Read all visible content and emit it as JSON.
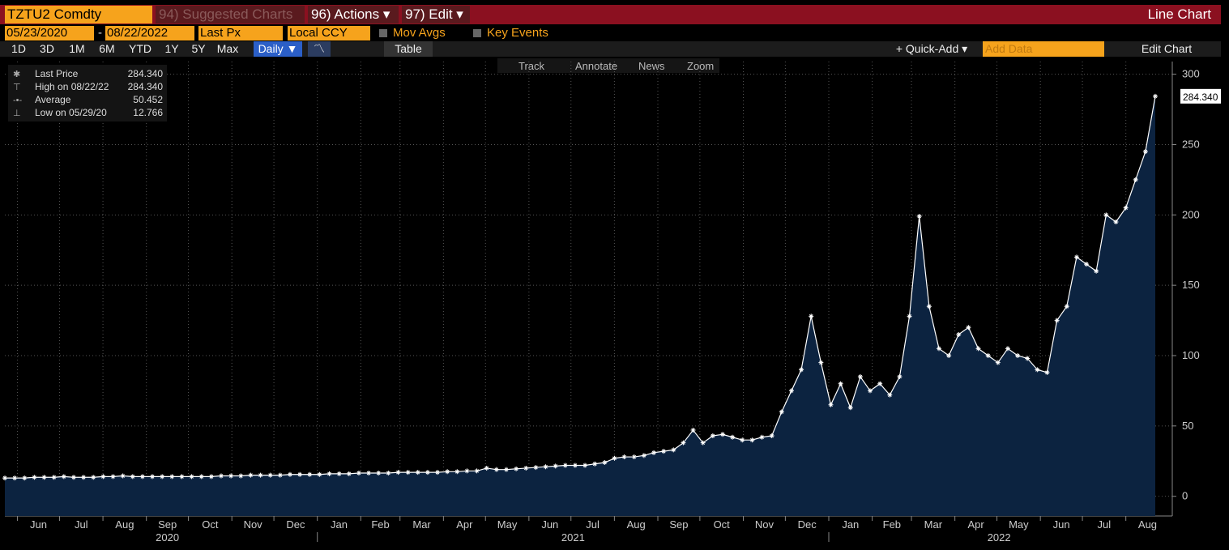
{
  "header": {
    "ticker": "TZTU2 Comdty",
    "suggested": "94) Suggested Charts",
    "actions": "96) Actions ▾",
    "edit": "97) Edit ▾",
    "chart_type": "Line Chart"
  },
  "controls": {
    "start": "05/23/2020",
    "dash": "-",
    "end": "08/22/2022",
    "field": "Last Px",
    "currency": "Local CCY",
    "mov_avgs": "Mov Avgs",
    "key_events": "Key Events"
  },
  "toolbar": {
    "periods": [
      "1D",
      "3D",
      "1M",
      "6M",
      "YTD",
      "1Y",
      "5Y",
      "Max"
    ],
    "frequency": "Daily ▼",
    "table": "Table",
    "quick_add": "+ Quick-Add ▾",
    "add_data": "Add Data",
    "edit_chart": "Edit Chart"
  },
  "chart_tools": [
    "Track",
    "Annotate",
    "News",
    "Zoom"
  ],
  "legend": {
    "rows": [
      [
        "Last Price",
        "284.340"
      ],
      [
        "High on 08/22/22",
        "284.340"
      ],
      [
        "Average",
        "50.452"
      ],
      [
        "Low on 05/29/20",
        "12.766"
      ]
    ]
  },
  "chart_data": {
    "type": "line",
    "last_label": "284.340",
    "color": "#ffffff",
    "fill": "#0c2340",
    "ylim": [
      -14,
      309
    ],
    "yticks": [
      0,
      50,
      100,
      150,
      200,
      250,
      300
    ],
    "grid": true,
    "months": [
      "Jun",
      "Jul",
      "Aug",
      "Sep",
      "Oct",
      "Nov",
      "Dec",
      "Jan",
      "Feb",
      "Mar",
      "Apr",
      "May",
      "Jun",
      "Jul",
      "Aug",
      "Sep",
      "Oct",
      "Nov",
      "Dec",
      "Jan",
      "Feb",
      "Mar",
      "Apr",
      "May",
      "Jun",
      "Jul",
      "Aug"
    ],
    "years": [
      "2020",
      "2021",
      "2022"
    ],
    "values": [
      13,
      13,
      13,
      13.5,
      13.5,
      13.5,
      14,
      13.5,
      13.5,
      13.5,
      14,
      14,
      14.5,
      14,
      14,
      14,
      14,
      14,
      14,
      14,
      14,
      14,
      14.5,
      14.5,
      14.5,
      15,
      15,
      15,
      15,
      15.5,
      15.5,
      15.5,
      15.5,
      16,
      16,
      16,
      16.5,
      16.5,
      16.5,
      16.5,
      17,
      17,
      17,
      17,
      17,
      17.5,
      17.5,
      18,
      18,
      20,
      19,
      19,
      19.5,
      20,
      20.5,
      21,
      21.5,
      22,
      22,
      22,
      23,
      24,
      27,
      28,
      28,
      29,
      31,
      32,
      33,
      38,
      47,
      38,
      43,
      44,
      42,
      40,
      40,
      42,
      43,
      60,
      75,
      90,
      128,
      95,
      65,
      80,
      63,
      85,
      75,
      80,
      72,
      85,
      128,
      199,
      135,
      105,
      100,
      115,
      120,
      105,
      100,
      95,
      105,
      100,
      98,
      90,
      88,
      125,
      135,
      170,
      165,
      160,
      200,
      195,
      205,
      225,
      245,
      284.34
    ]
  }
}
